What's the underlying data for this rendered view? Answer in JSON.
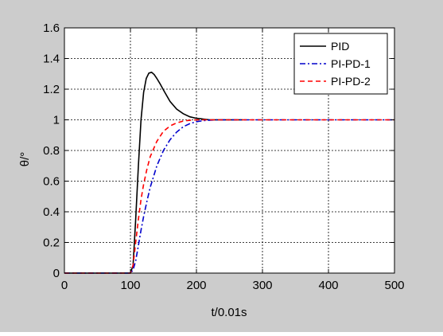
{
  "chart_data": {
    "type": "line",
    "xlabel": "t/0.01s",
    "ylabel": "θ/°",
    "xlim": [
      0,
      500
    ],
    "ylim": [
      0,
      1.6
    ],
    "xticks": [
      0,
      100,
      200,
      300,
      400,
      500
    ],
    "xtick_labels": [
      "0",
      "100",
      "200",
      "300",
      "400",
      "500"
    ],
    "yticks": [
      0,
      0.2,
      0.4,
      0.6,
      0.8,
      1,
      1.2,
      1.4,
      1.6
    ],
    "ytick_labels": [
      "0",
      "0.2",
      "0.4",
      "0.6",
      "0.8",
      "1",
      "1.2",
      "1.4",
      "1.6"
    ],
    "grid": true,
    "legend_position": "top-right",
    "series": [
      {
        "name": "PID",
        "color": "#000000",
        "style": "solid",
        "x": [
          0,
          100,
          104,
          108,
          112,
          116,
          120,
          124,
          128,
          132,
          136,
          140,
          145,
          150,
          160,
          170,
          180,
          190,
          200,
          210,
          220,
          230,
          240,
          250,
          260,
          270
        ],
        "y": [
          0,
          0,
          0.05,
          0.35,
          0.7,
          1.0,
          1.18,
          1.27,
          1.305,
          1.31,
          1.295,
          1.27,
          1.235,
          1.195,
          1.12,
          1.07,
          1.04,
          1.02,
          1.01,
          1.005,
          1.0,
          1.0,
          1.0,
          1.0,
          1.0,
          1.0
        ]
      },
      {
        "name": "PI-PD-1",
        "color": "#0000cc",
        "style": "dashdot",
        "x": [
          0,
          100,
          104,
          108,
          112,
          116,
          120,
          125,
          130,
          140,
          150,
          160,
          170,
          180,
          190,
          200,
          210,
          220,
          230,
          240,
          250,
          500
        ],
        "y": [
          0,
          0,
          0.02,
          0.08,
          0.18,
          0.28,
          0.37,
          0.47,
          0.56,
          0.7,
          0.8,
          0.87,
          0.92,
          0.955,
          0.975,
          0.988,
          0.995,
          0.998,
          1.0,
          1.0,
          1.0,
          1.0
        ]
      },
      {
        "name": "PI-PD-2",
        "color": "#ff0000",
        "style": "dashed",
        "x": [
          0,
          100,
          104,
          108,
          112,
          116,
          120,
          125,
          130,
          140,
          150,
          160,
          170,
          180,
          190,
          200,
          210,
          220,
          500
        ],
        "y": [
          0,
          0,
          0.05,
          0.2,
          0.35,
          0.48,
          0.58,
          0.68,
          0.76,
          0.86,
          0.925,
          0.96,
          0.98,
          0.992,
          0.997,
          1.0,
          1.0,
          1.0,
          1.0
        ]
      }
    ]
  }
}
